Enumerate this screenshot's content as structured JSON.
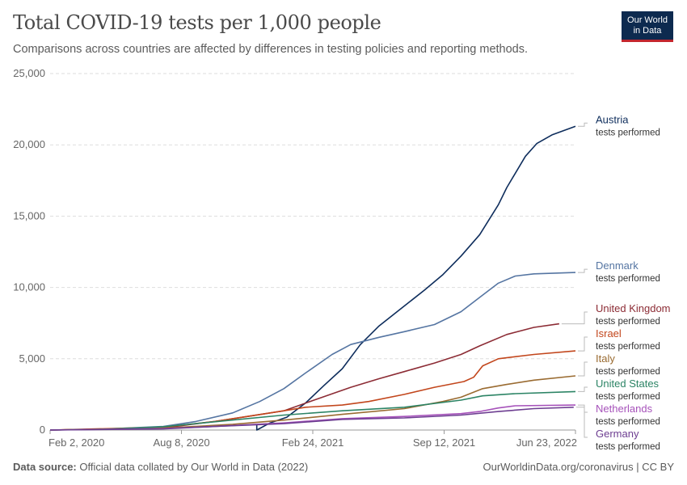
{
  "header": {
    "title": "Total COVID-19 tests per 1,000 people",
    "subtitle": "Comparisons across countries are affected by differences in testing policies and reporting methods."
  },
  "logo": {
    "line1": "Our World",
    "line2": "in Data"
  },
  "footer": {
    "source_label": "Data source:",
    "source_text": "Official data collated by Our World in Data (2022)",
    "right_text": "OurWorldinData.org/coronavirus | CC BY"
  },
  "chart_data": {
    "type": "line",
    "title": "Total COVID-19 tests per 1,000 people",
    "subtitle": "Comparisons across countries are affected by differences in testing policies and reporting methods.",
    "x_ticks": [
      "Feb 2, 2020",
      "Aug 8, 2020",
      "Feb 24, 2021",
      "Sep 12, 2021",
      "Jun 23, 2022"
    ],
    "x_range": [
      "2020-02-02",
      "2022-06-23"
    ],
    "y_ticks": [
      0,
      5000,
      10000,
      15000,
      20000,
      25000
    ],
    "y_tick_labels": [
      "0",
      "5,000",
      "10,000",
      "15,000",
      "20,000",
      "25,000"
    ],
    "ylim": [
      0,
      25000
    ],
    "grid": "horizontal dashed",
    "legend": "line labels at right end",
    "label_suffix": "tests performed",
    "series": [
      {
        "name": "Austria",
        "color": "#0e2d5c",
        "points": [
          [
            "2021-01-10",
            400
          ],
          [
            "2021-01-10",
            0
          ],
          [
            "2021-02-01",
            500
          ],
          [
            "2021-03-01",
            900
          ],
          [
            "2021-04-01",
            1900
          ],
          [
            "2021-05-01",
            3100
          ],
          [
            "2021-06-01",
            4300
          ],
          [
            "2021-07-01",
            6000
          ],
          [
            "2021-08-01",
            7300
          ],
          [
            "2021-09-12",
            8700
          ],
          [
            "2021-10-15",
            9800
          ],
          [
            "2021-11-15",
            10900
          ],
          [
            "2021-12-15",
            12200
          ],
          [
            "2022-01-15",
            13700
          ],
          [
            "2022-02-15",
            15800
          ],
          [
            "2022-03-01",
            17000
          ],
          [
            "2022-04-01",
            19200
          ],
          [
            "2022-04-20",
            20100
          ],
          [
            "2022-05-15",
            20700
          ],
          [
            "2022-06-23",
            21300
          ]
        ]
      },
      {
        "name": "Denmark",
        "color": "#5575a2",
        "points": [
          [
            "2020-02-02",
            0
          ],
          [
            "2020-05-01",
            70
          ],
          [
            "2020-08-08",
            250
          ],
          [
            "2020-10-01",
            600
          ],
          [
            "2020-12-01",
            1200
          ],
          [
            "2021-01-15",
            2000
          ],
          [
            "2021-02-24",
            2900
          ],
          [
            "2021-04-01",
            4000
          ],
          [
            "2021-05-15",
            5300
          ],
          [
            "2021-06-15",
            6000
          ],
          [
            "2021-08-01",
            6500
          ],
          [
            "2021-09-12",
            6900
          ],
          [
            "2021-11-01",
            7400
          ],
          [
            "2021-12-15",
            8300
          ],
          [
            "2022-01-15",
            9300
          ],
          [
            "2022-02-15",
            10300
          ],
          [
            "2022-03-15",
            10800
          ],
          [
            "2022-04-15",
            10950
          ],
          [
            "2022-06-23",
            11050
          ]
        ]
      },
      {
        "name": "United Kingdom",
        "color": "#8c2c35",
        "points": [
          [
            "2020-02-02",
            0
          ],
          [
            "2020-08-08",
            150
          ],
          [
            "2020-11-01",
            600
          ],
          [
            "2021-01-01",
            1000
          ],
          [
            "2021-02-24",
            1350
          ],
          [
            "2021-04-15",
            2100
          ],
          [
            "2021-06-15",
            3000
          ],
          [
            "2021-08-01",
            3600
          ],
          [
            "2021-09-12",
            4100
          ],
          [
            "2021-11-01",
            4700
          ],
          [
            "2021-12-15",
            5300
          ],
          [
            "2022-01-15",
            5900
          ],
          [
            "2022-03-01",
            6700
          ],
          [
            "2022-04-15",
            7200
          ],
          [
            "2022-05-27",
            7450
          ]
        ]
      },
      {
        "name": "Israel",
        "color": "#c2461c",
        "points": [
          [
            "2020-02-02",
            0
          ],
          [
            "2020-08-08",
            200
          ],
          [
            "2020-11-01",
            600
          ],
          [
            "2021-01-01",
            1000
          ],
          [
            "2021-02-24",
            1350
          ],
          [
            "2021-04-01",
            1600
          ],
          [
            "2021-06-01",
            1750
          ],
          [
            "2021-07-15",
            2000
          ],
          [
            "2021-09-12",
            2500
          ],
          [
            "2021-11-01",
            3000
          ],
          [
            "2021-12-20",
            3400
          ],
          [
            "2022-01-05",
            3700
          ],
          [
            "2022-01-20",
            4500
          ],
          [
            "2022-02-15",
            5000
          ],
          [
            "2022-04-15",
            5300
          ],
          [
            "2022-06-23",
            5550
          ]
        ]
      },
      {
        "name": "Italy",
        "color": "#9a6b31",
        "points": [
          [
            "2020-02-02",
            0
          ],
          [
            "2020-08-08",
            130
          ],
          [
            "2020-12-01",
            400
          ],
          [
            "2021-02-24",
            700
          ],
          [
            "2021-06-01",
            1100
          ],
          [
            "2021-09-12",
            1500
          ],
          [
            "2021-11-15",
            2000
          ],
          [
            "2021-12-15",
            2300
          ],
          [
            "2022-01-20",
            2900
          ],
          [
            "2022-03-01",
            3200
          ],
          [
            "2022-04-15",
            3500
          ],
          [
            "2022-06-23",
            3800
          ]
        ]
      },
      {
        "name": "United States",
        "color": "#2c8465",
        "points": [
          [
            "2020-02-02",
            0
          ],
          [
            "2020-05-01",
            50
          ],
          [
            "2020-08-08",
            230
          ],
          [
            "2020-11-01",
            580
          ],
          [
            "2021-02-24",
            1050
          ],
          [
            "2021-06-01",
            1350
          ],
          [
            "2021-09-12",
            1600
          ],
          [
            "2021-12-15",
            2100
          ],
          [
            "2022-01-20",
            2400
          ],
          [
            "2022-03-15",
            2550
          ],
          [
            "2022-06-23",
            2700
          ]
        ]
      },
      {
        "name": "Netherlands",
        "color": "#a652ba",
        "points": [
          [
            "2020-02-02",
            0
          ],
          [
            "2020-08-08",
            100
          ],
          [
            "2020-11-01",
            250
          ],
          [
            "2021-02-24",
            500
          ],
          [
            "2021-06-01",
            800
          ],
          [
            "2021-09-12",
            950
          ],
          [
            "2021-12-15",
            1150
          ],
          [
            "2022-01-15",
            1300
          ],
          [
            "2022-02-15",
            1550
          ],
          [
            "2022-03-15",
            1700
          ],
          [
            "2022-06-23",
            1750
          ]
        ]
      },
      {
        "name": "Germany",
        "color": "#6d3e91",
        "points": [
          [
            "2020-02-02",
            0
          ],
          [
            "2020-08-08",
            80
          ],
          [
            "2020-11-01",
            250
          ],
          [
            "2021-02-24",
            450
          ],
          [
            "2021-06-01",
            750
          ],
          [
            "2021-09-12",
            850
          ],
          [
            "2021-12-15",
            1050
          ],
          [
            "2022-02-15",
            1300
          ],
          [
            "2022-04-15",
            1500
          ],
          [
            "2022-06-20",
            1600
          ]
        ]
      }
    ]
  }
}
